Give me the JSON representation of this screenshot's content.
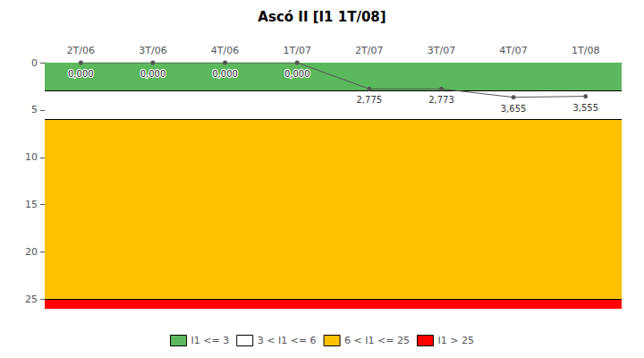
{
  "chart_data": {
    "type": "line",
    "title": "Ascó II [I1 1T/08]",
    "categories": [
      "2T/06",
      "3T/06",
      "4T/06",
      "1T/07",
      "2T/07",
      "3T/07",
      "4T/07",
      "1T/08"
    ],
    "values": [
      0.0,
      0.0,
      0.0,
      0.0,
      2.775,
      2.773,
      3.655,
      3.555
    ],
    "value_labels": [
      "0,000",
      "0,000",
      "0,000",
      "0,000",
      "2,775",
      "2,773",
      "3,655",
      "3,555"
    ],
    "data_labels": true,
    "color": "#555555",
    "marker": "circle",
    "ylim": [
      26,
      0
    ],
    "yticks": [
      0,
      5,
      10,
      15,
      20,
      25
    ],
    "grid": false,
    "legend": "bottom",
    "zones": [
      {
        "name": "I1 <= 3",
        "from": 0,
        "to": 3,
        "color": "#5CB85C"
      },
      {
        "name": "3 < I1 <= 6",
        "from": 3,
        "to": 6,
        "color": "#FFFFFF"
      },
      {
        "name": "6 < I1 <= 25",
        "from": 6,
        "to": 25,
        "color": "#FFC000"
      },
      {
        "name": "I1 > 25",
        "from": 25,
        "to": 26,
        "color": "#FF0000"
      }
    ]
  }
}
